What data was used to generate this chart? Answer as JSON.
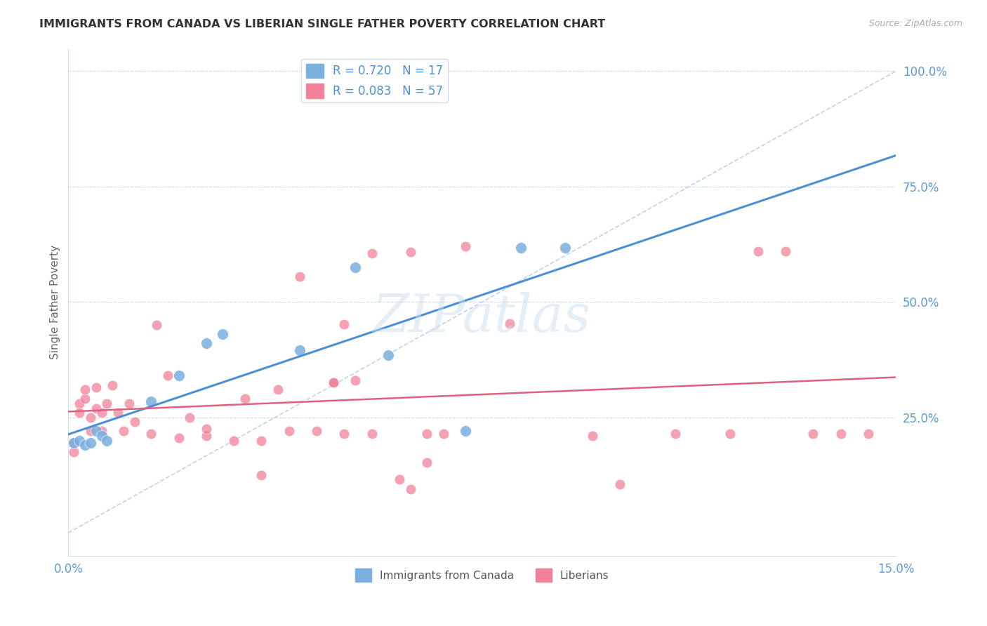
{
  "title": "IMMIGRANTS FROM CANADA VS LIBERIAN SINGLE FATHER POVERTY CORRELATION CHART",
  "source": "Source: ZipAtlas.com",
  "ylabel": "Single Father Poverty",
  "right_yticks": [
    "100.0%",
    "75.0%",
    "50.0%",
    "25.0%"
  ],
  "right_ytick_vals": [
    1.0,
    0.75,
    0.5,
    0.25
  ],
  "xlim": [
    0.0,
    0.15
  ],
  "ylim": [
    -0.05,
    1.05
  ],
  "canada_color": "#7ab0e0",
  "liberia_color": "#f0829a",
  "canada_line_color": "#4a90d4",
  "liberia_line_color": "#e06080",
  "diagonal_color": "#b0c8e8",
  "watermark": "ZIPatlas",
  "background_color": "#ffffff",
  "grid_color": "#d0dce8",
  "title_color": "#333333",
  "axis_color": "#5b9bd5",
  "canada_x": [
    0.001,
    0.002,
    0.003,
    0.004,
    0.005,
    0.006,
    0.007,
    0.015,
    0.02,
    0.025,
    0.028,
    0.042,
    0.052,
    0.058,
    0.072,
    0.082,
    0.09
  ],
  "canada_y": [
    0.195,
    0.2,
    0.19,
    0.195,
    0.22,
    0.21,
    0.2,
    0.285,
    0.34,
    0.41,
    0.43,
    0.395,
    0.575,
    0.385,
    0.22,
    0.618,
    0.618
  ],
  "liberia_x": [
    0.001,
    0.001,
    0.002,
    0.002,
    0.003,
    0.003,
    0.004,
    0.004,
    0.005,
    0.005,
    0.006,
    0.006,
    0.007,
    0.008,
    0.009,
    0.01,
    0.011,
    0.012,
    0.015,
    0.016,
    0.018,
    0.02,
    0.022,
    0.025,
    0.025,
    0.03,
    0.032,
    0.035,
    0.035,
    0.038,
    0.04,
    0.042,
    0.045,
    0.048,
    0.05,
    0.052,
    0.055,
    0.06,
    0.062,
    0.065,
    0.068,
    0.072,
    0.08,
    0.095,
    0.1,
    0.11,
    0.12,
    0.125,
    0.13,
    0.135,
    0.14,
    0.145,
    0.048,
    0.05,
    0.055,
    0.062,
    0.065
  ],
  "liberia_y": [
    0.195,
    0.175,
    0.28,
    0.26,
    0.29,
    0.31,
    0.22,
    0.25,
    0.27,
    0.315,
    0.26,
    0.22,
    0.28,
    0.32,
    0.26,
    0.22,
    0.28,
    0.24,
    0.215,
    0.45,
    0.34,
    0.205,
    0.25,
    0.21,
    0.225,
    0.2,
    0.29,
    0.125,
    0.2,
    0.31,
    0.22,
    0.555,
    0.22,
    0.325,
    0.215,
    0.33,
    0.215,
    0.115,
    0.095,
    0.152,
    0.215,
    0.62,
    0.453,
    0.21,
    0.105,
    0.215,
    0.215,
    0.61,
    0.61,
    0.215,
    0.215,
    0.215,
    0.325,
    0.452,
    0.605,
    0.608,
    0.215
  ]
}
